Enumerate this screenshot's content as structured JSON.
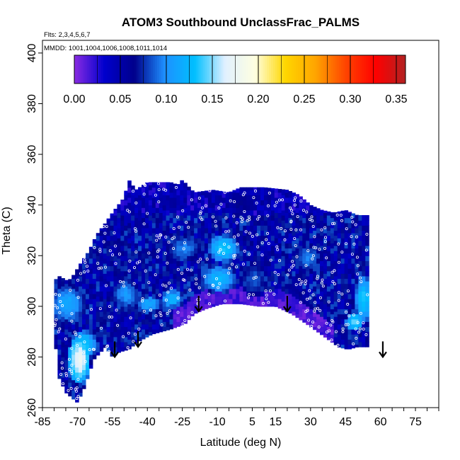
{
  "chart_data": {
    "type": "heatmap",
    "title": "ATOM3 Southbound UnclassFrac_PALMS",
    "annotations": {
      "flights": "Flts: 2,3,4,5,6,7",
      "dates": "MMDD: 1001,1004,1006,1008,1011,1014"
    },
    "xlabel": "Latitude (deg N)",
    "ylabel": "Theta (C)",
    "xlim": [
      -85,
      85
    ],
    "ylim": [
      260,
      405
    ],
    "x_ticks": [
      -85,
      -70,
      -55,
      -40,
      -25,
      -10,
      5,
      15,
      30,
      45,
      60,
      75
    ],
    "y_ticks": [
      260,
      280,
      300,
      320,
      340,
      360,
      380,
      400
    ],
    "colorbar": {
      "range": [
        0,
        0.36
      ],
      "ticks": [
        "0.00",
        "0.05",
        "0.10",
        "0.15",
        "0.20",
        "0.25",
        "0.30",
        "0.35"
      ],
      "colors": [
        "#8a2be2",
        "#0000cd",
        "#00008b",
        "#1e90ff",
        "#00bfff",
        "#e0f0ff",
        "#ffffe0",
        "#ffd700",
        "#ffa500",
        "#ff4500",
        "#ff0000",
        "#b22222"
      ]
    },
    "arrows": [
      {
        "lat": -54,
        "theta": 280
      },
      {
        "lat": -44,
        "theta": 284
      },
      {
        "lat": -18,
        "theta": 298
      },
      {
        "lat": 20,
        "theta": 298
      },
      {
        "lat": 61,
        "theta": 280
      }
    ],
    "upper_envelope": [
      [
        -80,
        310
      ],
      [
        -78,
        312
      ],
      [
        -74,
        310
      ],
      [
        -72,
        312
      ],
      [
        -68,
        318
      ],
      [
        -65,
        322
      ],
      [
        -62,
        328
      ],
      [
        -58,
        333
      ],
      [
        -55,
        337
      ],
      [
        -50,
        343
      ],
      [
        -48,
        350
      ],
      [
        -45,
        346
      ],
      [
        -40,
        349
      ],
      [
        -30,
        349
      ],
      [
        -27,
        348
      ],
      [
        -25,
        350
      ],
      [
        -20,
        345
      ],
      [
        -12,
        346
      ],
      [
        -5,
        345
      ],
      [
        0,
        347
      ],
      [
        10,
        347
      ],
      [
        20,
        346
      ],
      [
        25,
        344
      ],
      [
        30,
        340
      ],
      [
        35,
        338
      ],
      [
        40,
        337
      ],
      [
        45,
        338
      ],
      [
        50,
        336
      ],
      [
        55,
        336
      ]
    ],
    "lower_envelope": [
      [
        -80,
        290
      ],
      [
        -78,
        272
      ],
      [
        -75,
        266
      ],
      [
        -70,
        262
      ],
      [
        -67,
        268
      ],
      [
        -63,
        279
      ],
      [
        -58,
        284
      ],
      [
        -55,
        280
      ],
      [
        -52,
        282
      ],
      [
        -48,
        283
      ],
      [
        -44,
        286
      ],
      [
        -38,
        289
      ],
      [
        -30,
        291
      ],
      [
        -24,
        293
      ],
      [
        -20,
        297
      ],
      [
        -15,
        299
      ],
      [
        -8,
        301
      ],
      [
        0,
        301
      ],
      [
        8,
        300
      ],
      [
        15,
        300
      ],
      [
        22,
        297
      ],
      [
        30,
        292
      ],
      [
        36,
        288
      ],
      [
        42,
        284
      ],
      [
        46,
        283
      ],
      [
        50,
        284
      ],
      [
        55,
        284
      ]
    ],
    "blobs": [
      {
        "lat": -70,
        "theta": 278,
        "dlat": 5,
        "dth": 10,
        "value": 0.17
      },
      {
        "lat": -68,
        "theta": 284,
        "dlat": 6,
        "dth": 6,
        "value": 0.13
      },
      {
        "lat": -75,
        "theta": 300,
        "dlat": 8,
        "dth": 8,
        "value": 0.11
      },
      {
        "lat": -50,
        "theta": 304,
        "dlat": 6,
        "dth": 6,
        "value": 0.1
      },
      {
        "lat": -40,
        "theta": 300,
        "dlat": 6,
        "dth": 4,
        "value": 0.11
      },
      {
        "lat": -30,
        "theta": 302,
        "dlat": 5,
        "dth": 4,
        "value": 0.12
      },
      {
        "lat": -8,
        "theta": 322,
        "dlat": 7,
        "dth": 6,
        "value": 0.13
      },
      {
        "lat": -10,
        "theta": 310,
        "dlat": 8,
        "dth": 6,
        "value": 0.12
      },
      {
        "lat": -25,
        "theta": 322,
        "dlat": 8,
        "dth": 6,
        "value": 0.09
      },
      {
        "lat": 5,
        "theta": 310,
        "dlat": 6,
        "dth": 8,
        "value": 0.08
      },
      {
        "lat": 28,
        "theta": 318,
        "dlat": 6,
        "dth": 6,
        "value": 0.09
      },
      {
        "lat": 52,
        "theta": 302,
        "dlat": 4,
        "dth": 10,
        "value": 0.13
      },
      {
        "lat": 48,
        "theta": 293,
        "dlat": 4,
        "dth": 4,
        "value": 0.14
      },
      {
        "lat": 0,
        "theta": 340,
        "dlat": 8,
        "dth": 5,
        "value": 0.06
      },
      {
        "lat": -30,
        "theta": 340,
        "dlat": 6,
        "dth": 4,
        "value": 0.05
      },
      {
        "lat": 15,
        "theta": 305,
        "dlat": 6,
        "dth": 4,
        "value": 0.02
      },
      {
        "lat": -20,
        "theta": 330,
        "dlat": 5,
        "dth": 5,
        "value": 0.03
      },
      {
        "lat": -60,
        "theta": 318,
        "dlat": 4,
        "dth": 6,
        "value": 0.04
      }
    ],
    "grid": false
  }
}
